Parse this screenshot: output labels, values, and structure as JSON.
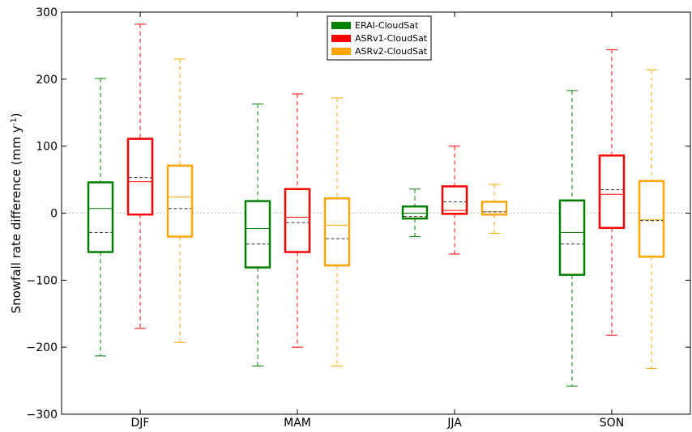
{
  "chart_data": {
    "type": "box",
    "title": "",
    "xlabel": "",
    "ylabel_main": "Snowfall rate difference (mm y",
    "ylabel_sup": "-1",
    "ylabel_tail": ")",
    "ylim": [
      -300,
      300
    ],
    "yticks": [
      -300,
      -200,
      -100,
      0,
      100,
      200,
      300
    ],
    "ytick_labels": [
      "−300",
      "−200",
      "−100",
      "0",
      "100",
      "200",
      "300"
    ],
    "categories": [
      "DJF",
      "MAM",
      "JJA",
      "SON"
    ],
    "zero_line": true,
    "legend_position": "top-center",
    "series": [
      {
        "name": "ERAI-CloudSat",
        "color": "#008000",
        "boxes": [
          {
            "whisker_low": -213,
            "q1": -58,
            "median": 7,
            "mean": -29,
            "q3": 46,
            "whisker_high": 201
          },
          {
            "whisker_low": -228,
            "q1": -81,
            "median": -23,
            "mean": -46,
            "q3": 18,
            "whisker_high": 163
          },
          {
            "whisker_low": -35,
            "q1": -8,
            "median": 0,
            "mean": -5,
            "q3": 10,
            "whisker_high": 36
          },
          {
            "whisker_low": -258,
            "q1": -92,
            "median": -29,
            "mean": -46,
            "q3": 19,
            "whisker_high": 183
          }
        ]
      },
      {
        "name": "ASRv1-CloudSat",
        "color": "#ff0000",
        "boxes": [
          {
            "whisker_low": -172,
            "q1": -2,
            "median": 47,
            "mean": 53,
            "q3": 111,
            "whisker_high": 282
          },
          {
            "whisker_low": -200,
            "q1": -58,
            "median": -6,
            "mean": -14,
            "q3": 36,
            "whisker_high": 178
          },
          {
            "whisker_low": -61,
            "q1": -1,
            "median": 4,
            "mean": 17,
            "q3": 40,
            "whisker_high": 100
          },
          {
            "whisker_low": -182,
            "q1": -22,
            "median": 28,
            "mean": 35,
            "q3": 86,
            "whisker_high": 244
          }
        ]
      },
      {
        "name": "ASRv2-CloudSat",
        "color": "#ffa500",
        "boxes": [
          {
            "whisker_low": -193,
            "q1": -35,
            "median": 24,
            "mean": 7,
            "q3": 71,
            "whisker_high": 230
          },
          {
            "whisker_low": -228,
            "q1": -78,
            "median": -18,
            "mean": -38,
            "q3": 22,
            "whisker_high": 172
          },
          {
            "whisker_low": -30,
            "q1": -2,
            "median": 2,
            "mean": 2,
            "q3": 17,
            "whisker_high": 43
          },
          {
            "whisker_low": -232,
            "q1": -65,
            "median": -10,
            "mean": -11,
            "q3": 48,
            "whisker_high": 214
          }
        ]
      }
    ]
  }
}
